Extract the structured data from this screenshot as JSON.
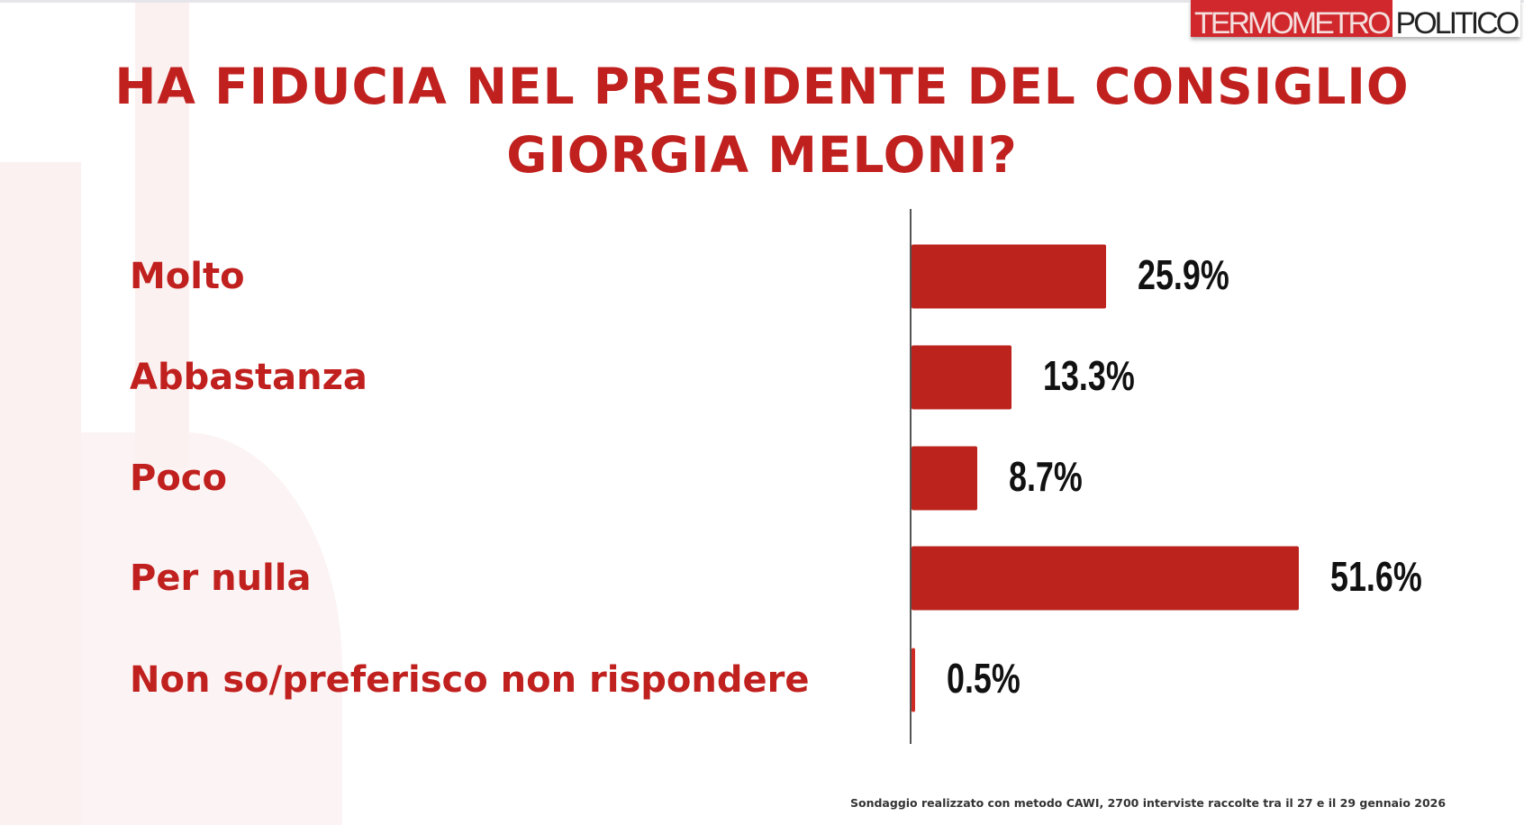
{
  "logo": {
    "part1": "TERMOMETRO",
    "part2": "POLITICO"
  },
  "colors": {
    "accent": "#bb231c",
    "title": "#c0211f",
    "value_text": "#111111"
  },
  "chart_data": {
    "type": "bar",
    "orientation": "horizontal",
    "title_line1": "HA FIDUCIA NEL PRESIDENTE DEL CONSIGLIO",
    "title_line2": "GIORGIA MELONI?",
    "categories": [
      "Molto",
      "Abbastanza",
      "Poco",
      "Per nulla",
      "Non so/preferisco non rispondere"
    ],
    "values": [
      25.9,
      13.3,
      8.7,
      51.6,
      0.5
    ],
    "value_labels": [
      "25.9%",
      "13.3%",
      "8.7%",
      "51.6%",
      "0.5%"
    ],
    "unit": "%",
    "xlim": [
      0,
      80
    ],
    "grid": false,
    "legend": "none"
  },
  "footer": {
    "note": "Sondaggio realizzato con metodo CAWI, 2700 interviste raccolte tra il 27 e il 29 gennaio 2026"
  }
}
